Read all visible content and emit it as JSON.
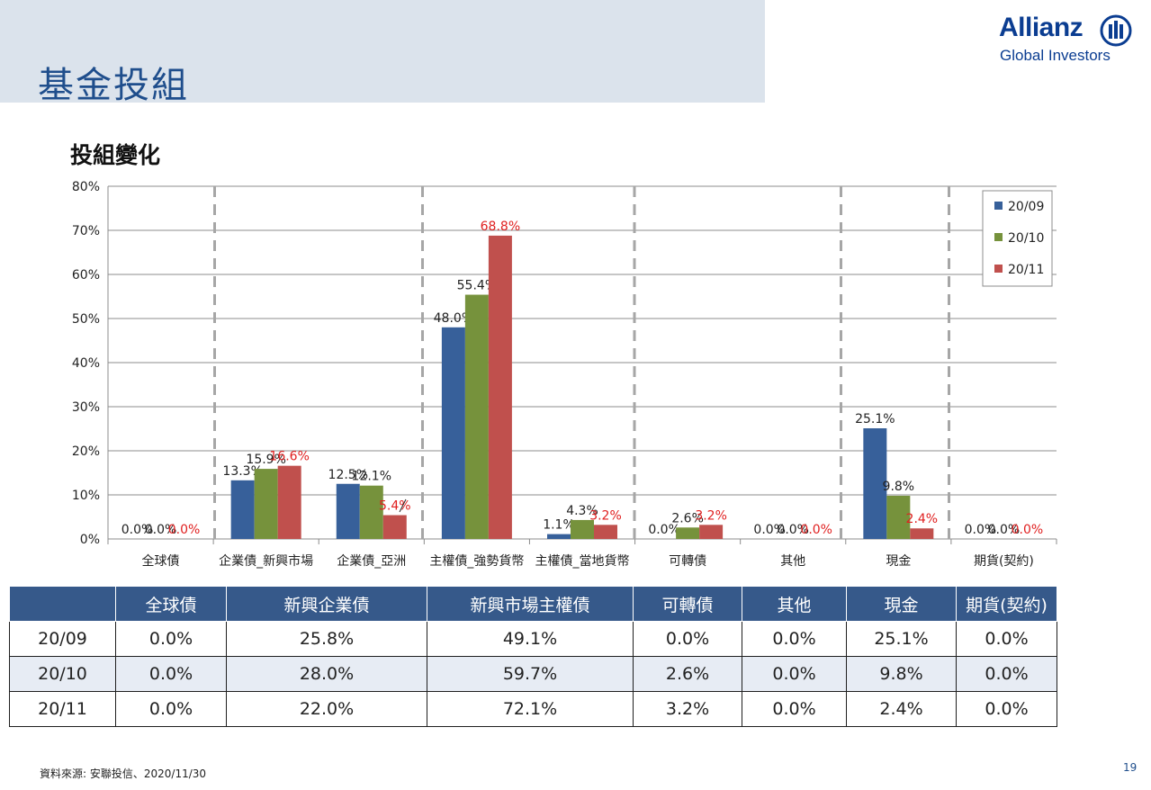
{
  "page": {
    "title": "基金投組",
    "section_title": "投組變化",
    "source": "資料來源: 安聯投信、2020/11/30",
    "page_number": "19"
  },
  "logo": {
    "brand": "Allianz",
    "sub": "Global Investors",
    "color": "#0b3d91"
  },
  "chart_data": {
    "type": "bar",
    "categories": [
      "全球債",
      "企業債_新興市場",
      "企業債_亞洲",
      "主權債_強勢貨幣",
      "主權債_當地貨幣",
      "可轉債",
      "其他",
      "現金",
      "期貨(契約)"
    ],
    "series": [
      {
        "name": "20/09",
        "color": "#37609a",
        "values": [
          0.0,
          13.3,
          12.5,
          48.0,
          1.1,
          0.0,
          0.0,
          25.1,
          0.0
        ],
        "labels": [
          "0.0%",
          "13.3%",
          "12.5%",
          "48.0%",
          "1.1%",
          "0.0%",
          "0.0%",
          "25.1%",
          "0.0%"
        ],
        "label_color": "#222222"
      },
      {
        "name": "20/10",
        "color": "#76923c",
        "values": [
          0.0,
          15.9,
          12.1,
          55.4,
          4.3,
          2.6,
          0.0,
          9.8,
          0.0
        ],
        "labels": [
          "0.0%",
          "15.9%",
          "12.1%",
          "55.4%",
          "4.3%",
          "2.6%",
          "0.0%",
          "9.8%",
          "0.0%"
        ],
        "label_color": "#222222"
      },
      {
        "name": "20/11",
        "color": "#c0504d",
        "values": [
          0.0,
          16.6,
          5.4,
          68.8,
          3.2,
          3.2,
          0.0,
          2.4,
          0.0
        ],
        "labels": [
          "0.0%",
          "16.6%",
          "5.4%",
          "68.8%",
          "3.2%",
          "3.2%",
          "0.0%",
          "2.4%",
          "0.0%"
        ],
        "label_color": "#e02020"
      }
    ],
    "y_ticks": [
      "0%",
      "10%",
      "20%",
      "30%",
      "40%",
      "50%",
      "60%",
      "70%",
      "80%"
    ],
    "ylim": [
      0,
      80
    ],
    "grid": true,
    "legend_position": "top-right"
  },
  "table": {
    "headers": [
      "",
      "全球債",
      "新興企業債",
      "新興市場主權債",
      "可轉債",
      "其他",
      "現金",
      "期貨(契約)"
    ],
    "rows": [
      {
        "period": "20/09",
        "cells": [
          "0.0%",
          "25.8%",
          "49.1%",
          "0.0%",
          "0.0%",
          "25.1%",
          "0.0%"
        ]
      },
      {
        "period": "20/10",
        "cells": [
          "0.0%",
          "28.0%",
          "59.7%",
          "2.6%",
          "0.0%",
          "9.8%",
          "0.0%"
        ]
      },
      {
        "period": "20/11",
        "cells": [
          "0.0%",
          "22.0%",
          "72.1%",
          "3.2%",
          "0.0%",
          "2.4%",
          "0.0%"
        ]
      }
    ]
  }
}
